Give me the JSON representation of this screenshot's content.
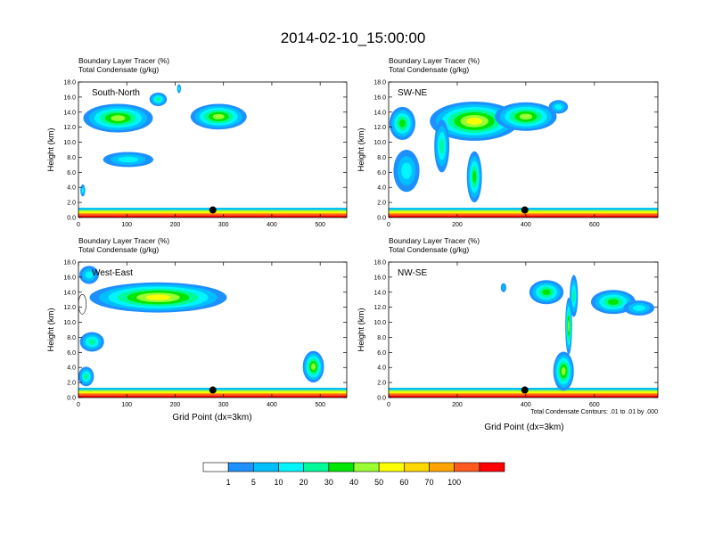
{
  "title": "2014-02-10_15:00:00",
  "panel_header_line1": "Boundary Layer Tracer   (%)",
  "panel_header_line2": "Total Condensate   (g/kg)",
  "contour_note": "Total Condensate Contours: .01 to .01 by .000",
  "colorbar": {
    "labels": [
      "1",
      "5",
      "10",
      "20",
      "30",
      "40",
      "50",
      "60",
      "70",
      "100"
    ],
    "colors": [
      "#ffffff",
      "#1e90ff",
      "#00bfff",
      "#00f5ff",
      "#00fa9a",
      "#00e600",
      "#9aff32",
      "#ffff00",
      "#ffd700",
      "#ffa500",
      "#ff5a1e",
      "#ff0000"
    ]
  },
  "chart_data": [
    {
      "type": "heatmap",
      "panel": "top-left",
      "label": "South-North",
      "ylabel": "Height (km)",
      "xlabel": "",
      "xlim": [
        0,
        555
      ],
      "ylim": [
        0,
        18
      ],
      "xticks": [
        "0",
        "100",
        "200",
        "300",
        "400",
        "500"
      ],
      "yticks": [
        "0.0",
        "2.0",
        "4.0",
        "6.0",
        "8.0",
        "10.0",
        "12.0",
        "14.0",
        "16.0",
        "18.0"
      ],
      "marker_x": 278,
      "blobs": [
        {
          "x": 82,
          "y": 13.2,
          "rx": 72,
          "ry": 1.9,
          "level": 5
        },
        {
          "x": 165,
          "y": 15.7,
          "rx": 18,
          "ry": 0.9,
          "level": 3
        },
        {
          "x": 290,
          "y": 13.4,
          "rx": 58,
          "ry": 1.7,
          "level": 5
        },
        {
          "x": 208,
          "y": 17.1,
          "rx": 4,
          "ry": 0.6,
          "level": 2
        },
        {
          "x": 103,
          "y": 7.7,
          "rx": 52,
          "ry": 1.0,
          "level": 2
        },
        {
          "x": 9,
          "y": 3.6,
          "rx": 5,
          "ry": 0.8,
          "level": 2
        }
      ]
    },
    {
      "type": "heatmap",
      "panel": "top-right",
      "label": "SW-NE",
      "ylabel": "Height (km)",
      "xlabel": "",
      "xlim": [
        0,
        785
      ],
      "ylim": [
        0,
        18
      ],
      "xticks": [
        "0",
        "200",
        "400",
        "600"
      ],
      "yticks": [
        "0.0",
        "2.0",
        "4.0",
        "6.0",
        "8.0",
        "10.0",
        "12.0",
        "14.0",
        "16.0",
        "18.0"
      ],
      "marker_x": 397,
      "blobs": [
        {
          "x": 40,
          "y": 12.5,
          "rx": 38,
          "ry": 2.2,
          "level": 4
        },
        {
          "x": 52,
          "y": 6.2,
          "rx": 38,
          "ry": 2.8,
          "level": 2
        },
        {
          "x": 250,
          "y": 12.8,
          "rx": 130,
          "ry": 2.6,
          "level": 6
        },
        {
          "x": 400,
          "y": 13.4,
          "rx": 90,
          "ry": 1.9,
          "level": 5
        },
        {
          "x": 250,
          "y": 5.4,
          "rx": 22,
          "ry": 3.4,
          "level": 4
        },
        {
          "x": 155,
          "y": 9.5,
          "rx": 22,
          "ry": 3.5,
          "level": 3
        },
        {
          "x": 495,
          "y": 14.7,
          "rx": 28,
          "ry": 0.9,
          "level": 2
        }
      ]
    },
    {
      "type": "heatmap",
      "panel": "bottom-left",
      "label": "West-East",
      "ylabel": "Height (km)",
      "xlabel": "Grid Point (dx=3km)",
      "xlim": [
        0,
        555
      ],
      "ylim": [
        0,
        18
      ],
      "xticks": [
        "0",
        "100",
        "200",
        "300",
        "400",
        "500"
      ],
      "yticks": [
        "0.0",
        "2.0",
        "4.0",
        "6.0",
        "8.0",
        "10.0",
        "12.0",
        "14.0",
        "16.0",
        "18.0"
      ],
      "marker_x": 278,
      "blobs": [
        {
          "x": 165,
          "y": 13.3,
          "rx": 142,
          "ry": 2.0,
          "level": 6
        },
        {
          "x": 22,
          "y": 16.3,
          "rx": 20,
          "ry": 1.2,
          "level": 2
        },
        {
          "x": 28,
          "y": 7.4,
          "rx": 25,
          "ry": 1.3,
          "level": 3
        },
        {
          "x": 16,
          "y": 2.8,
          "rx": 16,
          "ry": 1.3,
          "level": 3
        },
        {
          "x": 486,
          "y": 4.1,
          "rx": 22,
          "ry": 2.1,
          "level": 5
        },
        {
          "x": 8,
          "y": 12.4,
          "rx": 8,
          "ry": 1.3,
          "level": 0
        }
      ]
    },
    {
      "type": "heatmap",
      "panel": "bottom-right",
      "label": "NW-SE",
      "ylabel": "Height (km)",
      "xlabel": "Grid Point (dx=3km)",
      "xlim": [
        0,
        785
      ],
      "ylim": [
        0,
        18
      ],
      "xticks": [
        "0",
        "200",
        "400",
        "600"
      ],
      "yticks": [
        "0.0",
        "2.0",
        "4.0",
        "6.0",
        "8.0",
        "10.0",
        "12.0",
        "14.0",
        "16.0",
        "18.0"
      ],
      "marker_x": 397,
      "blobs": [
        {
          "x": 540,
          "y": 13.5,
          "rx": 12,
          "ry": 2.8,
          "level": 3
        },
        {
          "x": 525,
          "y": 9.5,
          "rx": 10,
          "ry": 3.8,
          "level": 5
        },
        {
          "x": 510,
          "y": 3.5,
          "rx": 30,
          "ry": 2.6,
          "level": 5
        },
        {
          "x": 655,
          "y": 12.7,
          "rx": 65,
          "ry": 1.6,
          "level": 4
        },
        {
          "x": 730,
          "y": 11.9,
          "rx": 45,
          "ry": 1.0,
          "level": 2
        },
        {
          "x": 335,
          "y": 14.6,
          "rx": 8,
          "ry": 0.6,
          "level": 1
        },
        {
          "x": 460,
          "y": 14.0,
          "rx": 50,
          "ry": 1.6,
          "level": 4
        }
      ]
    }
  ]
}
